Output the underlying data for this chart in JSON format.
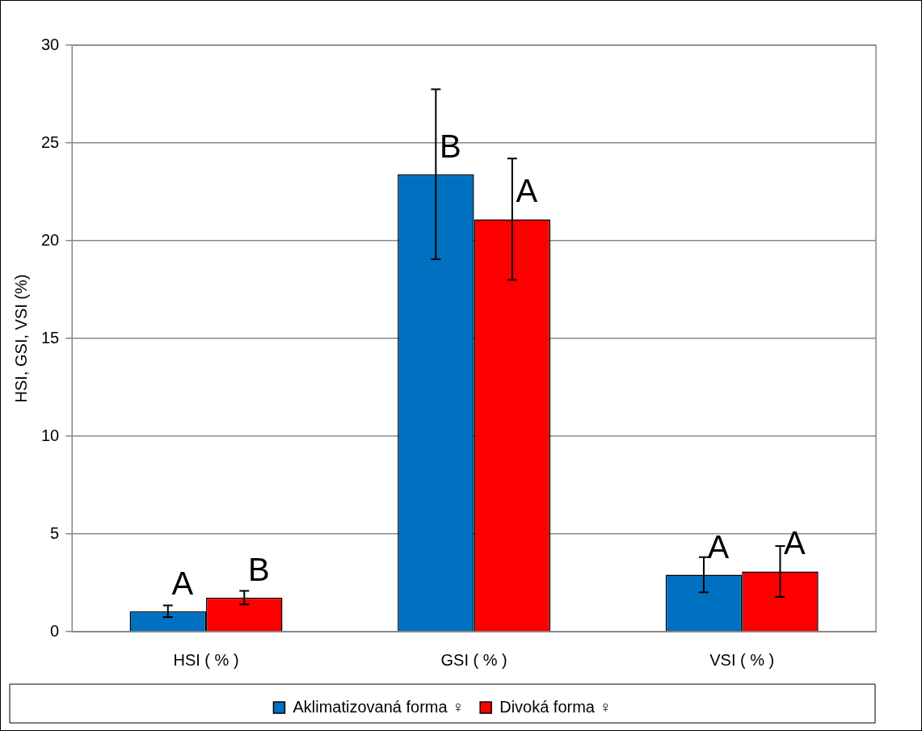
{
  "chart_data": {
    "type": "bar",
    "ylabel": "HSI, GSI, VSI (%)",
    "categories": [
      "HSI ( % )",
      "GSI ( % )",
      "VSI ( % )"
    ],
    "series": [
      {
        "name": "Aklimatizovaná forma ♀",
        "color": "#0070c0",
        "values": [
          1.04,
          23.4,
          2.91
        ],
        "errors": [
          0.3,
          4.35,
          0.9
        ]
      },
      {
        "name": "Divoká forma ♀",
        "color": "#ff0000",
        "values": [
          1.74,
          21.1,
          3.08
        ],
        "errors": [
          0.35,
          3.1,
          1.3
        ]
      }
    ],
    "ylim": [
      0,
      30
    ],
    "yticks": [
      0,
      5,
      10,
      15,
      20,
      25,
      30
    ],
    "grid": "y",
    "legend": "bottom",
    "annotations": [
      "A",
      "B",
      "B",
      "A",
      "A",
      "A"
    ]
  }
}
